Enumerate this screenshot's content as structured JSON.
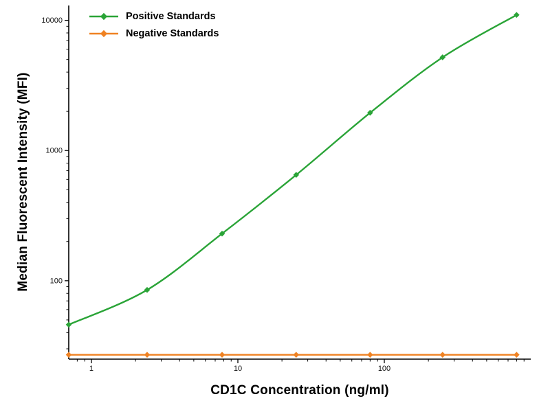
{
  "figure": {
    "background": "#ffffff",
    "axis_color": "#000000"
  },
  "chart_data": {
    "type": "line",
    "title": "",
    "xlabel": "CD1C Concentration (ng/ml)",
    "ylabel": "Median  Fluorescent Intensity  (MFI)",
    "x_scale": "log",
    "y_scale": "log",
    "xlim": [
      0.7,
      1000
    ],
    "ylim": [
      25,
      13000
    ],
    "x_ticks": [
      1,
      10,
      100
    ],
    "y_ticks": [
      100,
      1000,
      10000
    ],
    "grid": false,
    "legend_position": "top-left",
    "x": [
      0.7,
      2.4,
      7.8,
      25,
      80,
      250,
      800
    ],
    "series": [
      {
        "name": "Positive Standards",
        "color": "#2aa437",
        "marker": "diamond",
        "smooth": true,
        "values": [
          46,
          85,
          230,
          650,
          1950,
          5200,
          11000
        ]
      },
      {
        "name": "Negative Standards",
        "color": "#ef8222",
        "marker": "diamond",
        "smooth": false,
        "values": [
          27,
          27,
          27,
          27,
          27,
          27,
          27
        ]
      }
    ]
  }
}
